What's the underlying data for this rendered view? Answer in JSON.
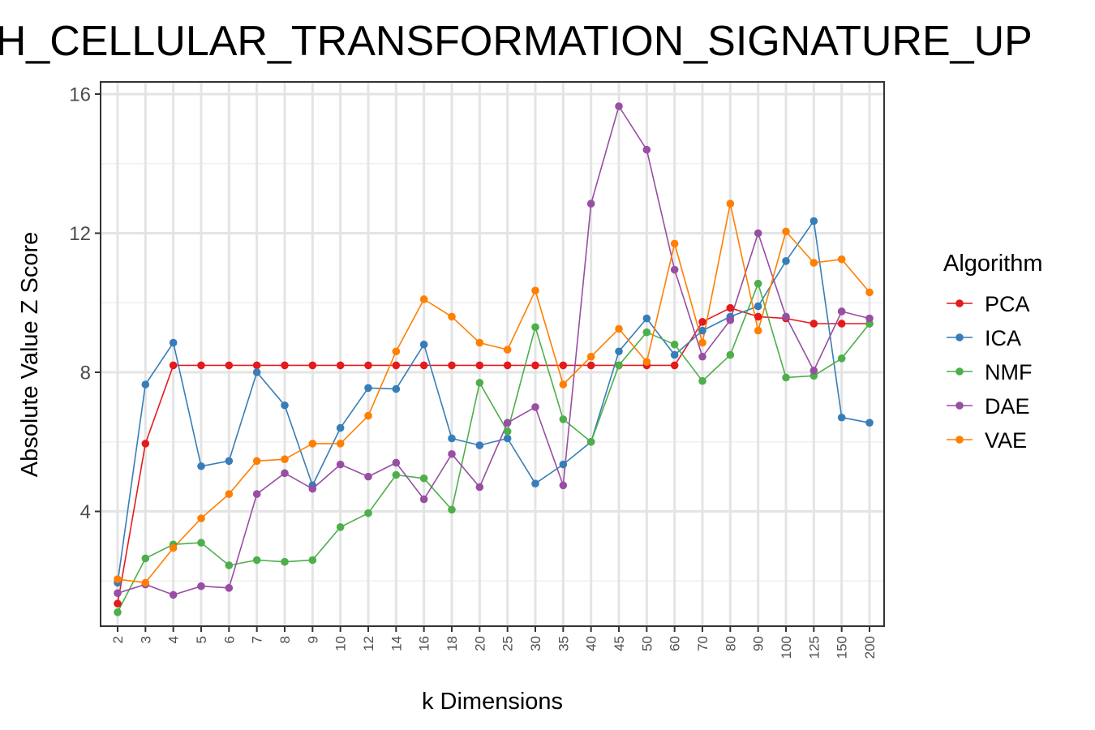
{
  "chart_data": {
    "type": "line",
    "title": "CH_CELLULAR_TRANSFORMATION_SIGNATURE_UP",
    "xlabel": "k Dimensions",
    "ylabel": "Absolute Value Z Score",
    "categories": [
      "2",
      "3",
      "4",
      "5",
      "6",
      "7",
      "8",
      "9",
      "10",
      "12",
      "14",
      "16",
      "18",
      "20",
      "25",
      "30",
      "35",
      "40",
      "45",
      "50",
      "60",
      "70",
      "80",
      "90",
      "100",
      "125",
      "150",
      "200"
    ],
    "ylim": [
      0.7,
      16.35
    ],
    "yticks": [
      4,
      8,
      12,
      16
    ],
    "grid": true,
    "legend": {
      "title": "Algorithm",
      "placement": "right"
    },
    "series": [
      {
        "name": "PCA",
        "color": "#e41a1c",
        "values": [
          1.35,
          5.95,
          8.2,
          8.2,
          8.2,
          8.2,
          8.2,
          8.2,
          8.2,
          8.2,
          8.2,
          8.2,
          8.2,
          8.2,
          8.2,
          8.2,
          8.2,
          8.2,
          8.2,
          8.2,
          8.2,
          9.45,
          9.85,
          9.6,
          9.55,
          9.4,
          9.4,
          9.4
        ]
      },
      {
        "name": "ICA",
        "color": "#377eb8",
        "values": [
          1.95,
          7.65,
          8.85,
          5.3,
          5.45,
          8.0,
          7.05,
          4.75,
          6.4,
          7.55,
          7.52,
          8.8,
          6.1,
          5.9,
          6.1,
          4.8,
          5.35,
          6.0,
          8.6,
          9.55,
          8.5,
          9.2,
          9.6,
          9.9,
          11.2,
          12.35,
          6.7,
          6.55
        ]
      },
      {
        "name": "NMF",
        "color": "#4daf4a",
        "values": [
          1.1,
          2.65,
          3.05,
          3.1,
          2.45,
          2.6,
          2.55,
          2.6,
          3.55,
          3.95,
          5.05,
          4.95,
          4.05,
          7.7,
          6.3,
          9.3,
          6.65,
          6.0,
          8.2,
          9.15,
          8.8,
          7.75,
          8.5,
          10.55,
          7.85,
          7.9,
          8.4,
          9.4
        ]
      },
      {
        "name": "DAE",
        "color": "#984ea3",
        "values": [
          1.65,
          1.9,
          1.6,
          1.85,
          1.8,
          4.5,
          5.1,
          4.65,
          5.35,
          5.0,
          5.4,
          4.35,
          5.65,
          4.7,
          6.55,
          7.0,
          4.75,
          12.85,
          15.65,
          14.4,
          10.95,
          8.45,
          9.5,
          12.0,
          9.6,
          8.05,
          9.75,
          9.55
        ]
      },
      {
        "name": "VAE",
        "color": "#ff7f00",
        "values": [
          2.05,
          1.95,
          2.95,
          3.8,
          4.5,
          5.45,
          5.5,
          5.95,
          5.95,
          6.75,
          8.6,
          10.1,
          9.6,
          8.85,
          8.65,
          10.35,
          7.65,
          8.45,
          9.25,
          8.3,
          11.7,
          8.85,
          12.85,
          9.2,
          12.05,
          11.15,
          11.25,
          10.3
        ]
      }
    ]
  }
}
